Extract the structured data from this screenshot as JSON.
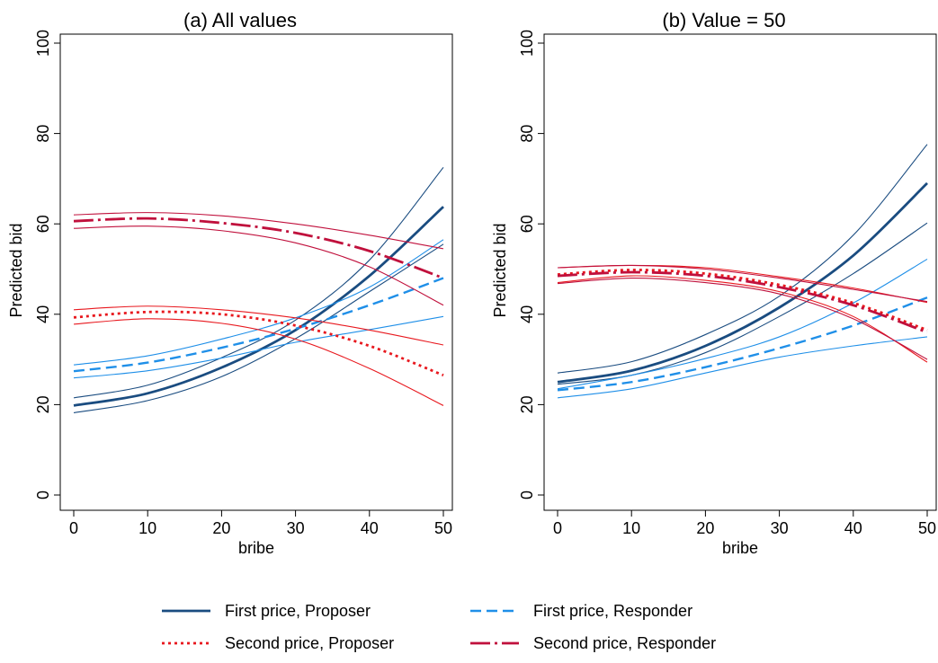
{
  "chart_data": [
    {
      "type": "line",
      "title": "(a) All values",
      "xlabel": "bribe",
      "ylabel": "Predicted bid",
      "xlim": [
        0,
        50
      ],
      "ylim": [
        0,
        100
      ],
      "xticks": [
        "0",
        "10",
        "20",
        "30",
        "40",
        "50"
      ],
      "yticks": [
        "0",
        "20",
        "40",
        "60",
        "80",
        "100"
      ],
      "grid": false,
      "x": [
        0,
        10,
        20,
        30,
        40,
        50
      ],
      "series": [
        {
          "name": "First price, Proposer",
          "color": "#1a4c80",
          "style": "solid-thick",
          "values": [
            19.8,
            22.5,
            28.2,
            36.5,
            48.5,
            63.8
          ],
          "lower": [
            18.2,
            20.9,
            26.2,
            34.6,
            45.0,
            55.5
          ],
          "upper": [
            21.5,
            24.3,
            30.4,
            38.7,
            52.0,
            72.5
          ]
        },
        {
          "name": "First price, Responder",
          "color": "#1f8fe8",
          "style": "dash",
          "values": [
            27.4,
            29.3,
            32.6,
            36.8,
            42.0,
            48.0
          ],
          "lower": [
            25.9,
            27.5,
            30.3,
            33.8,
            36.6,
            39.5
          ],
          "upper": [
            28.8,
            30.8,
            34.5,
            39.2,
            46.0,
            56.5
          ]
        },
        {
          "name": "Second price, Proposer",
          "color": "#e8181e",
          "style": "dot",
          "values": [
            39.3,
            40.5,
            40.0,
            37.5,
            33.0,
            26.5
          ],
          "lower": [
            37.8,
            39.0,
            38.0,
            34.5,
            28.0,
            19.8
          ],
          "upper": [
            41.0,
            41.8,
            41.0,
            39.2,
            36.5,
            33.2
          ]
        },
        {
          "name": "Second price, Responder",
          "color": "#c0103c",
          "style": "longdash-dot",
          "values": [
            60.6,
            61.2,
            60.2,
            58.0,
            54.0,
            48.0
          ],
          "lower": [
            59.0,
            59.5,
            58.5,
            55.8,
            50.5,
            42.0
          ],
          "upper": [
            62.0,
            62.5,
            61.8,
            60.0,
            57.5,
            54.5
          ]
        }
      ]
    },
    {
      "type": "line",
      "title": "(b) Value = 50",
      "xlabel": "bribe",
      "ylabel": "Predicted bid",
      "xlim": [
        0,
        50
      ],
      "ylim": [
        0,
        100
      ],
      "xticks": [
        "0",
        "10",
        "20",
        "30",
        "40",
        "50"
      ],
      "yticks": [
        "0",
        "20",
        "40",
        "60",
        "80",
        "100"
      ],
      "grid": false,
      "x": [
        0,
        10,
        20,
        30,
        40,
        50
      ],
      "series": [
        {
          "name": "First price, Proposer",
          "color": "#1a4c80",
          "style": "solid-thick",
          "values": [
            25.0,
            27.5,
            33.0,
            41.5,
            53.0,
            69.0
          ],
          "lower": [
            24.5,
            26.5,
            31.5,
            39.5,
            49.0,
            60.2
          ],
          "upper": [
            27.0,
            29.5,
            35.5,
            44.0,
            57.5,
            77.6
          ]
        },
        {
          "name": "First price, Responder",
          "color": "#1f8fe8",
          "style": "dash",
          "values": [
            23.2,
            25.0,
            28.3,
            32.5,
            37.5,
            43.7
          ],
          "lower": [
            21.5,
            23.5,
            27.0,
            30.5,
            33.0,
            35.0
          ],
          "upper": [
            23.5,
            26.5,
            30.2,
            35.0,
            42.5,
            52.2
          ]
        },
        {
          "name": "Second price, Proposer",
          "color": "#e8181e",
          "style": "dot",
          "values": [
            48.8,
            49.8,
            49.0,
            46.5,
            42.5,
            36.5
          ],
          "lower": [
            47.0,
            48.5,
            47.5,
            45.0,
            39.5,
            29.4
          ],
          "upper": [
            50.3,
            50.8,
            50.3,
            48.3,
            45.8,
            42.6
          ]
        },
        {
          "name": "Second price, Responder",
          "color": "#c0103c",
          "style": "longdash-dot",
          "values": [
            48.5,
            49.3,
            48.5,
            46.0,
            42.0,
            36.0
          ],
          "lower": [
            46.8,
            48.0,
            47.0,
            44.5,
            39.0,
            30.0
          ],
          "upper": [
            50.3,
            50.8,
            50.0,
            48.0,
            45.5,
            42.8
          ]
        }
      ]
    }
  ],
  "legend": [
    {
      "label": "First price, Proposer",
      "color": "#1a4c80",
      "style": "solid-thick"
    },
    {
      "label": "First price, Responder",
      "color": "#1f8fe8",
      "style": "dash"
    },
    {
      "label": "Second price, Proposer",
      "color": "#e8181e",
      "style": "dot"
    },
    {
      "label": "Second price, Responder",
      "color": "#c0103c",
      "style": "longdash-dot"
    }
  ]
}
